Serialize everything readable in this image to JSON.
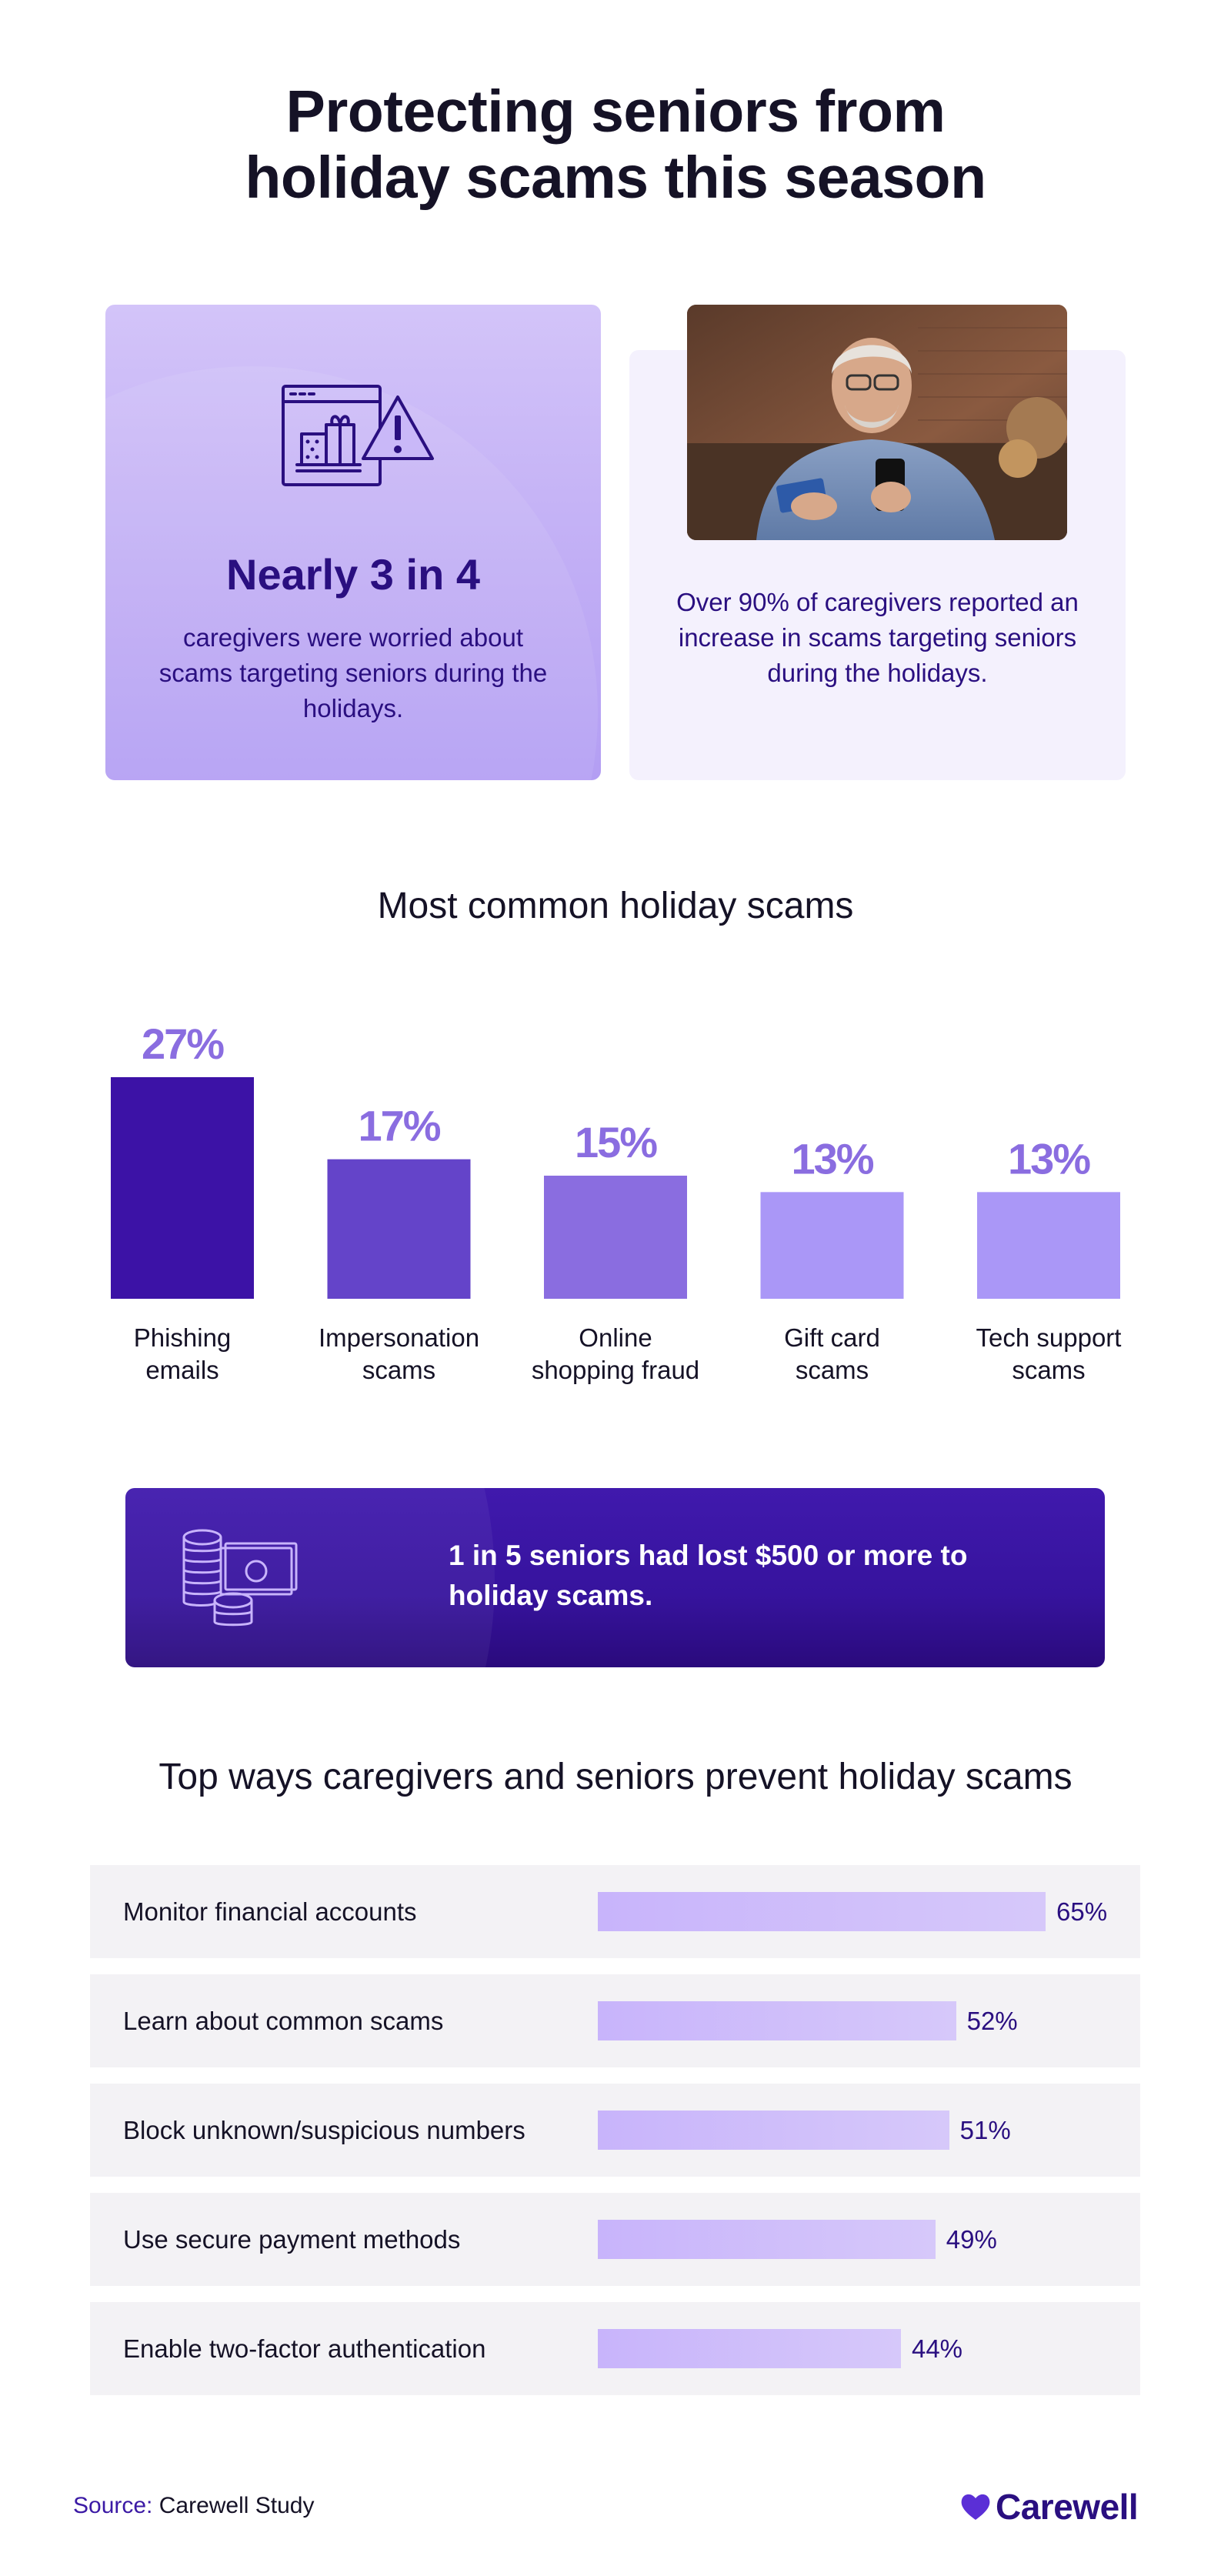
{
  "title": {
    "line1": "Protecting seniors from",
    "line2": "holiday scams this season"
  },
  "card_left": {
    "stat": "Nearly 3 in 4",
    "text": "caregivers were worried about scams targeting seniors during the holidays.",
    "icon": "gift-warning-icon"
  },
  "card_right": {
    "text": "Over 90% of caregivers reported an increase in scams targeting seniors during the holidays.",
    "photo": "senior-man-with-phone-and-card-photo"
  },
  "chart_section": {
    "title": "Most common holiday scams"
  },
  "chart_data": {
    "type": "bar",
    "title": "Most common holiday scams",
    "categories": [
      [
        "Phishing",
        "emails"
      ],
      [
        "Impersonation",
        "scams"
      ],
      [
        "Online",
        "shopping fraud"
      ],
      [
        "Gift card",
        "scams"
      ],
      [
        "Tech support",
        "scams"
      ]
    ],
    "values": [
      27,
      17,
      15,
      13,
      13
    ],
    "value_labels": [
      "27%",
      "17%",
      "15%",
      "13%",
      "13%"
    ],
    "unit": "%",
    "bar_colors": [
      "#3c12a6",
      "#6444c9",
      "#8a6de0",
      "#aa97f7",
      "#aa97f7"
    ],
    "label_color": "#8a6de0",
    "grid": false
  },
  "banner": {
    "text": "1 in 5 seniors had lost $500 or more to holiday scams.",
    "icon": "coins-cash-icon"
  },
  "prevention": {
    "title": "Top ways caregivers and seniors prevent holiday scams",
    "items": [
      {
        "label": "Monitor financial accounts",
        "value": 65,
        "pct": "65%"
      },
      {
        "label": "Learn about common scams",
        "value": 52,
        "pct": "52%"
      },
      {
        "label": "Block unknown/suspicious numbers",
        "value": 51,
        "pct": "51%"
      },
      {
        "label": "Use secure payment methods",
        "value": 49,
        "pct": "49%"
      },
      {
        "label": "Enable two-factor authentication",
        "value": 44,
        "pct": "44%"
      }
    ]
  },
  "footer": {
    "source_key": "Source:",
    "source_value": "Carewell Study",
    "logo_text": "Carewell",
    "logo_icon": "heart-icon"
  },
  "colors": {
    "brand_dark": "#2a0f80",
    "brand_purple": "#3c12a6",
    "accent_light": "#c8b4fb"
  }
}
